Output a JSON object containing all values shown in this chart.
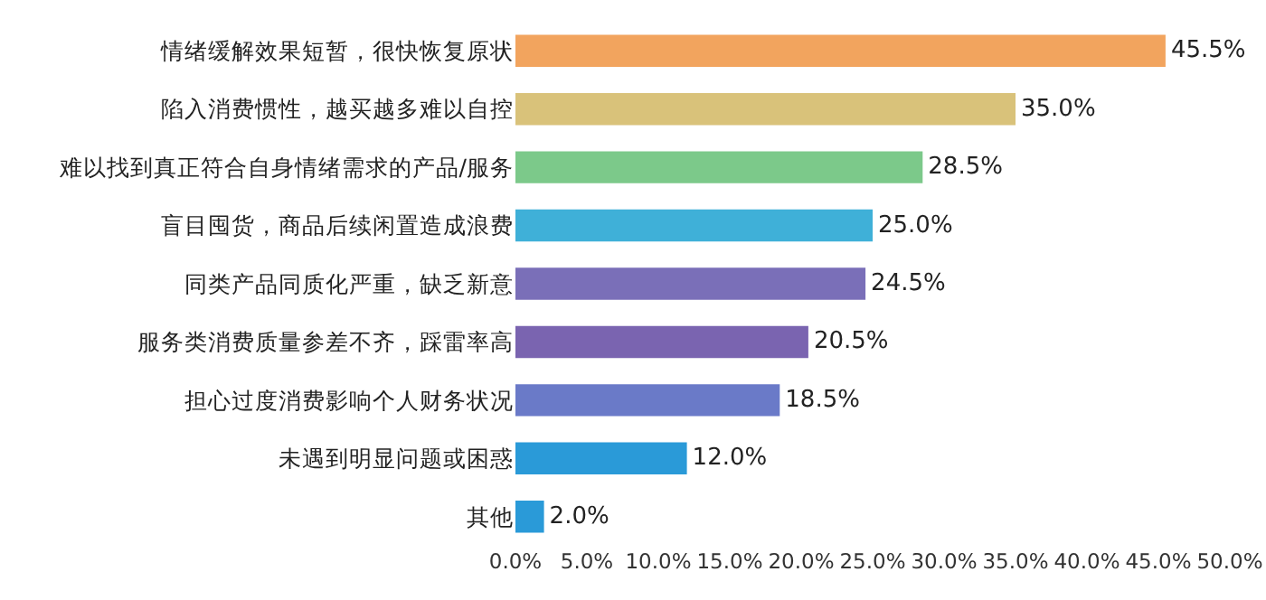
{
  "chart_data": {
    "type": "bar",
    "orientation": "horizontal",
    "categories": [
      "情绪缓解效果短暂，很快恢复原状",
      "陷入消费惯性，越买越多难以自控",
      "难以找到真正符合自身情绪需求的产品/服务",
      "盲目囤货，商品后续闲置造成浪费",
      "同类产品同质化严重，缺乏新意",
      "服务类消费质量参差不齐，踩雷率高",
      "担心过度消费影响个人财务状况",
      "未遇到明显问题或困惑",
      "其他"
    ],
    "values": [
      45.5,
      35.0,
      28.5,
      25.0,
      24.5,
      20.5,
      18.5,
      12.0,
      2.0
    ],
    "value_labels": [
      "45.5%",
      "35.0%",
      "28.5%",
      "25.0%",
      "24.5%",
      "20.5%",
      "18.5%",
      "12.0%",
      "2.0%"
    ],
    "colors": [
      "#f2a45e",
      "#d9c27a",
      "#7cc98a",
      "#3fb0d8",
      "#7a6fb8",
      "#7a64b0",
      "#6a7ac8",
      "#2a9ad8",
      "#2a9ad8"
    ],
    "xlim": [
      0,
      50
    ],
    "xticks": [
      {
        "value": 0,
        "label": "0.0%"
      },
      {
        "value": 5,
        "label": "5.0%"
      },
      {
        "value": 10,
        "label": "10.0%"
      },
      {
        "value": 15,
        "label": "15.0%"
      },
      {
        "value": 20,
        "label": "20.0%"
      },
      {
        "value": 25,
        "label": "25.0%"
      },
      {
        "value": 30,
        "label": "30.0%"
      },
      {
        "value": 35,
        "label": "35.0%"
      },
      {
        "value": 40,
        "label": "40.0%"
      },
      {
        "value": 45,
        "label": "45.0%"
      },
      {
        "value": 50,
        "label": "50.0%"
      }
    ],
    "grid": false,
    "legend": false
  }
}
